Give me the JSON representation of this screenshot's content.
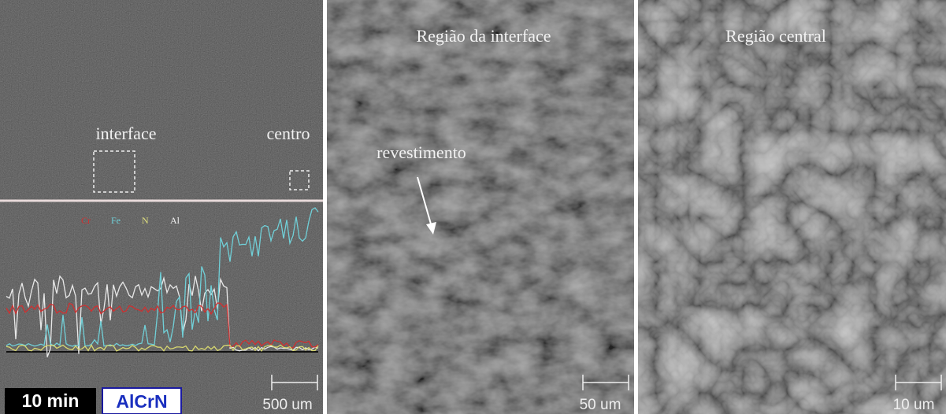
{
  "panels": [
    {
      "region_labels": [
        "interface",
        "centro"
      ],
      "legend": [
        "Cr",
        "Fe",
        "N",
        "Al"
      ],
      "time": "10 min",
      "coating": "AlCrN",
      "scale": "500 um"
    },
    {
      "title": "Região da interface",
      "annotation": "revestimento",
      "scale": "50 um"
    },
    {
      "title": "Região central",
      "scale": "10 um"
    }
  ]
}
